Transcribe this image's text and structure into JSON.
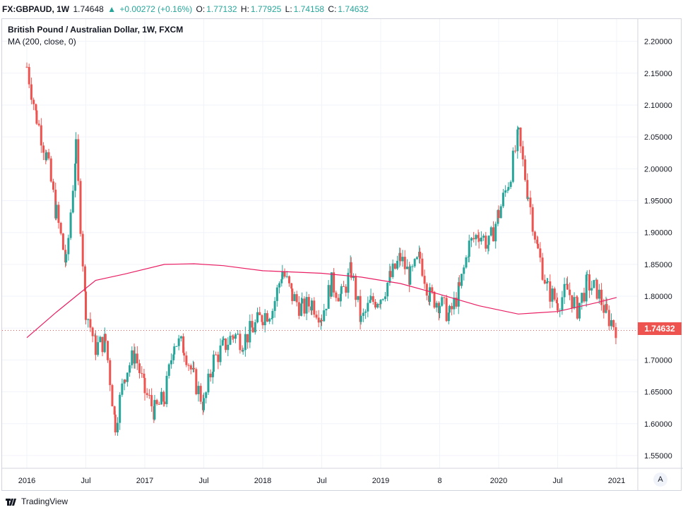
{
  "header": {
    "symbol": "FX:GBPAUD, 1W",
    "last": "1.74648",
    "arrow": "▲",
    "change": "+0.00272 (+0.16%)",
    "o_label": "O:",
    "o": "1.77132",
    "h_label": "H:",
    "h": "1.77925",
    "l_label": "L:",
    "l": "1.74158",
    "c_label": "C:",
    "c": "1.74632"
  },
  "legend": {
    "title": "British Pound / Australian Dollar, 1W, FXCM",
    "indicator": "MA (200, close, 0)"
  },
  "price_tag": "1.74632",
  "auto_button": "A",
  "footer": {
    "brand": "TradingView"
  },
  "colors": {
    "up": "#26a69a",
    "down": "#ef5350",
    "ma": "#e91e63",
    "grid": "#f0f3fa",
    "price_tag": "#ef5350"
  },
  "chart_data": {
    "type": "candlestick",
    "interval": "1W",
    "y_axis": {
      "ticks": [
        "2.20000",
        "2.15000",
        "2.10000",
        "2.05000",
        "2.00000",
        "1.95000",
        "1.90000",
        "1.85000",
        "1.80000",
        "1.75000",
        "1.70000",
        "1.65000",
        "1.60000",
        "1.55000"
      ],
      "range": [
        1.53,
        2.235
      ]
    },
    "x_axis": {
      "ticks": [
        "2016",
        "Jul",
        "2017",
        "Jul",
        "2018",
        "Jul",
        "2019",
        "8",
        "2020",
        "Jul",
        "2021"
      ]
    },
    "close_series": [
      {
        "x": "2016-01",
        "close": 2.16
      },
      {
        "x": "2016-02",
        "close": 2.08
      },
      {
        "x": "2016-03",
        "close": 2.02
      },
      {
        "x": "2016-04",
        "close": 1.93
      },
      {
        "x": "2016-05",
        "close": 1.85
      },
      {
        "x": "2016-06",
        "close": 2.03
      },
      {
        "x": "2016-07",
        "close": 1.78
      },
      {
        "x": "2016-08",
        "close": 1.72
      },
      {
        "x": "2016-09",
        "close": 1.73
      },
      {
        "x": "2016-10",
        "close": 1.6
      },
      {
        "x": "2016-11",
        "close": 1.68
      },
      {
        "x": "2016-12",
        "close": 1.71
      },
      {
        "x": "2017-01",
        "close": 1.65
      },
      {
        "x": "2017-02",
        "close": 1.62
      },
      {
        "x": "2017-03",
        "close": 1.64
      },
      {
        "x": "2017-04",
        "close": 1.73
      },
      {
        "x": "2017-05",
        "close": 1.72
      },
      {
        "x": "2017-06",
        "close": 1.67
      },
      {
        "x": "2017-07",
        "close": 1.63
      },
      {
        "x": "2017-08",
        "close": 1.7
      },
      {
        "x": "2017-09",
        "close": 1.72
      },
      {
        "x": "2017-10",
        "close": 1.74
      },
      {
        "x": "2017-11",
        "close": 1.73
      },
      {
        "x": "2017-12",
        "close": 1.75
      },
      {
        "x": "2018-01",
        "close": 1.77
      },
      {
        "x": "2018-02",
        "close": 1.78
      },
      {
        "x": "2018-03",
        "close": 1.84
      },
      {
        "x": "2018-04",
        "close": 1.8
      },
      {
        "x": "2018-05",
        "close": 1.78
      },
      {
        "x": "2018-06",
        "close": 1.79
      },
      {
        "x": "2018-07",
        "close": 1.77
      },
      {
        "x": "2018-08",
        "close": 1.82
      },
      {
        "x": "2018-09",
        "close": 1.8
      },
      {
        "x": "2018-10",
        "close": 1.84
      },
      {
        "x": "2018-11",
        "close": 1.76
      },
      {
        "x": "2018-12",
        "close": 1.79
      },
      {
        "x": "2019-01",
        "close": 1.8
      },
      {
        "x": "2019-02",
        "close": 1.83
      },
      {
        "x": "2019-03",
        "close": 1.86
      },
      {
        "x": "2019-04",
        "close": 1.83
      },
      {
        "x": "2019-05",
        "close": 1.86
      },
      {
        "x": "2019-06",
        "close": 1.8
      },
      {
        "x": "2019-07",
        "close": 1.79
      },
      {
        "x": "2019-08",
        "close": 1.77
      },
      {
        "x": "2019-09",
        "close": 1.81
      },
      {
        "x": "2019-10",
        "close": 1.88
      },
      {
        "x": "2019-11",
        "close": 1.9
      },
      {
        "x": "2019-12",
        "close": 1.88
      },
      {
        "x": "2020-01",
        "close": 1.93
      },
      {
        "x": "2020-02",
        "close": 1.98
      },
      {
        "x": "2020-03",
        "close": 2.05
      },
      {
        "x": "2020-04",
        "close": 1.96
      },
      {
        "x": "2020-05",
        "close": 1.87
      },
      {
        "x": "2020-06",
        "close": 1.81
      },
      {
        "x": "2020-07",
        "close": 1.79
      },
      {
        "x": "2020-08",
        "close": 1.81
      },
      {
        "x": "2020-09",
        "close": 1.78
      },
      {
        "x": "2020-10",
        "close": 1.82
      },
      {
        "x": "2020-11",
        "close": 1.81
      },
      {
        "x": "2020-12",
        "close": 1.77
      },
      {
        "x": "2021-01",
        "close": 1.75
      }
    ],
    "ma_series": [
      {
        "x": "2016-01",
        "value": 1.735
      },
      {
        "x": "2016-04",
        "value": 1.775
      },
      {
        "x": "2016-06",
        "value": 1.8
      },
      {
        "x": "2016-08",
        "value": 1.825
      },
      {
        "x": "2016-11",
        "value": 1.835
      },
      {
        "x": "2017-03",
        "value": 1.85
      },
      {
        "x": "2017-06",
        "value": 1.851
      },
      {
        "x": "2017-09",
        "value": 1.848
      },
      {
        "x": "2018-01",
        "value": 1.84
      },
      {
        "x": "2018-07",
        "value": 1.836
      },
      {
        "x": "2018-11",
        "value": 1.83
      },
      {
        "x": "2019-03",
        "value": 1.82
      },
      {
        "x": "2019-07",
        "value": 1.803
      },
      {
        "x": "2019-11",
        "value": 1.785
      },
      {
        "x": "2020-03",
        "value": 1.772
      },
      {
        "x": "2020-07",
        "value": 1.776
      },
      {
        "x": "2020-11",
        "value": 1.79
      },
      {
        "x": "2021-01",
        "value": 1.798
      }
    ]
  }
}
